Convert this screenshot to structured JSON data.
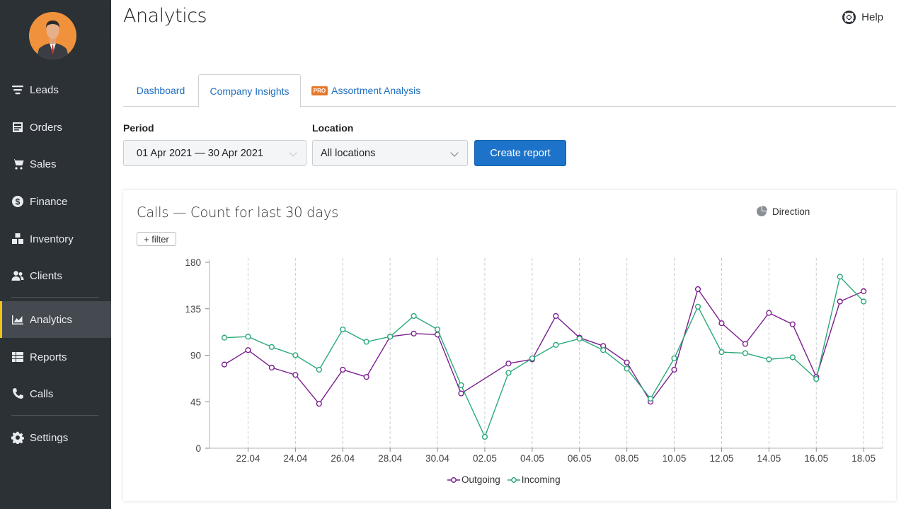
{
  "app": {
    "page_title": "Analytics",
    "help_label": "Help"
  },
  "sidebar": {
    "items": [
      {
        "label": "Leads",
        "icon": "filter-list-icon"
      },
      {
        "label": "Orders",
        "icon": "orders-icon"
      },
      {
        "label": "Sales",
        "icon": "cart-icon"
      },
      {
        "label": "Finance",
        "icon": "dollar-icon"
      },
      {
        "label": "Inventory",
        "icon": "boxes-icon"
      },
      {
        "label": "Clients",
        "icon": "users-icon"
      },
      {
        "label": "Analytics",
        "icon": "chart-icon",
        "active": true
      },
      {
        "label": "Reports",
        "icon": "table-icon"
      },
      {
        "label": "Calls",
        "icon": "phone-icon"
      },
      {
        "label": "Settings",
        "icon": "gear-icon"
      }
    ]
  },
  "tabs": [
    {
      "label": "Dashboard"
    },
    {
      "label": "Company Insights",
      "active": true
    },
    {
      "label": "Assortment Analysis",
      "badge": "PRO"
    }
  ],
  "filters": {
    "period_label": "Period",
    "period_value": "01 Apr 2021 — 30 Apr 2021",
    "location_label": "Location",
    "location_value": "All locations",
    "create_report": "Create report"
  },
  "card": {
    "title": "Calls — Count for last 30 days",
    "direction_label": "Direction",
    "filter_label": "+ filter"
  },
  "colors": {
    "outgoing": "#7b1f8e",
    "incoming": "#2aa978",
    "accent": "#1d73c9",
    "sidebar_active": "#f0c419"
  },
  "chart_data": {
    "type": "line",
    "ylim": [
      0,
      180
    ],
    "y_ticks": [
      0,
      45,
      90,
      135,
      180
    ],
    "x_tick_labels": [
      "22.04",
      "24.04",
      "26.04",
      "28.04",
      "30.04",
      "02.05",
      "04.05",
      "06.05",
      "08.05",
      "10.05",
      "12.05",
      "14.05",
      "16.05",
      "18.05"
    ],
    "x": [
      "21.04",
      "22.04",
      "23.04",
      "24.04",
      "25.04",
      "26.04",
      "27.04",
      "28.04",
      "29.04",
      "30.04",
      "01.05",
      "02.05",
      "03.05",
      "04.05",
      "05.05",
      "06.05",
      "07.05",
      "08.05",
      "09.05",
      "10.05",
      "11.05",
      "12.05",
      "13.05",
      "14.05",
      "15.05",
      "16.05",
      "17.05",
      "18.05"
    ],
    "series": [
      {
        "name": "Outgoing",
        "values": [
          81,
          95,
          78,
          71,
          43,
          76,
          69,
          108,
          111,
          110,
          53,
          null,
          82,
          86,
          128,
          107,
          99,
          83,
          45,
          76,
          154,
          121,
          101,
          131,
          120,
          69,
          142,
          152
        ]
      },
      {
        "name": "Incoming",
        "values": [
          107,
          108,
          98,
          90,
          76,
          115,
          103,
          108,
          128,
          115,
          61,
          11,
          73,
          87,
          100,
          106,
          95,
          77,
          48,
          87,
          137,
          93,
          92,
          86,
          88,
          67,
          166,
          142
        ]
      }
    ],
    "grid": "vertical-dashed",
    "legend_position": "bottom"
  }
}
